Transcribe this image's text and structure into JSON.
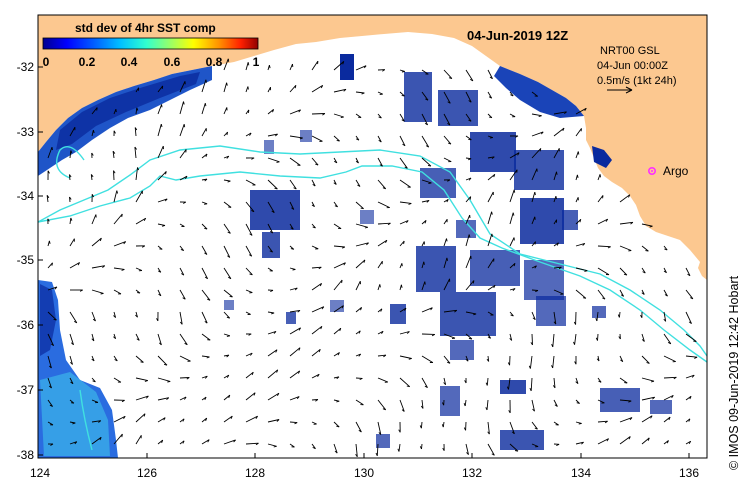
{
  "map": {
    "date_title": "04-Jun-2019 12Z",
    "colorbar": {
      "title": "std dev of 4hr SST comp",
      "ticks": [
        "0",
        "0.2",
        "0.4",
        "0.6",
        "0.8",
        "1"
      ],
      "colors": [
        "#00008f",
        "#0000ff",
        "#0060ff",
        "#00c0ff",
        "#30ffcf",
        "#a0ff60",
        "#ffff00",
        "#ff9000",
        "#ff2000",
        "#900000"
      ]
    },
    "info": {
      "line1": "NRT00 GSL",
      "line2": "04-Jun 00:00Z",
      "line3": "0.5m/s (1kt 24h)"
    },
    "argo_label": "Argo",
    "credit": "© IMOS 09-Jun-2019 12:42 Hobart",
    "lon_ticks": [
      "124",
      "126",
      "128",
      "130",
      "132",
      "134",
      "136"
    ],
    "lat_ticks": [
      "-32",
      "-33",
      "-34",
      "-35",
      "-36",
      "-37",
      "-38"
    ],
    "colors": {
      "land": "#fcc890",
      "front_line": "#40e0e0",
      "argo_marker": "#ff30ff",
      "data_dark": "#0a2a9e",
      "data_mid": "#2a6ce0",
      "data_light": "#38a8e8"
    },
    "icons": {
      "vector_arrows": "current-vector-icon",
      "argo": "argo-float-icon"
    }
  }
}
